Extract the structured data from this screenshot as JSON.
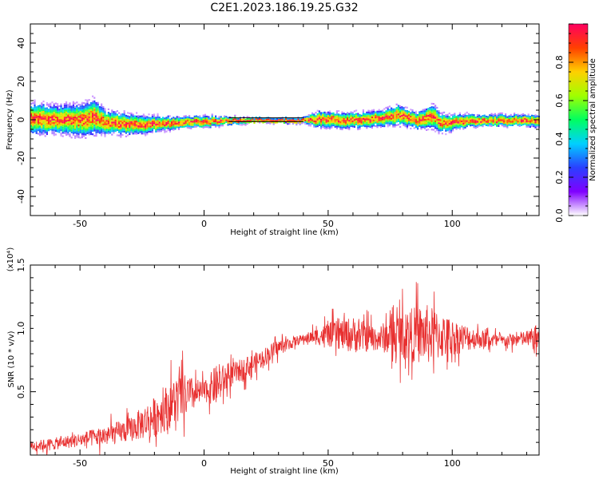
{
  "figure": {
    "title": "C2E1.2023.186.19.25.G32"
  },
  "chart_data": [
    {
      "type": "heatmap",
      "title": "C2E1.2023.186.19.25.G32",
      "xlabel": "Height of straight line (km)",
      "ylabel": "Frequency (Hz)",
      "xlim": [
        -70,
        135
      ],
      "ylim": [
        -50,
        50
      ],
      "x_ticks": [
        -50,
        0,
        50,
        100
      ],
      "x_tick_labels": [
        "-50",
        "0",
        "50",
        "100"
      ],
      "y_ticks": [
        -40,
        -20,
        0,
        20,
        40
      ],
      "y_tick_labels": [
        "-40",
        "-20",
        "0",
        "20",
        "40"
      ],
      "grid": false,
      "description_trace": {
        "x": [
          -70,
          -60,
          -50,
          -45,
          -40,
          -30,
          -20,
          -10,
          0,
          10,
          20,
          30,
          40,
          45,
          50,
          60,
          70,
          78,
          85,
          92,
          95,
          100,
          110,
          120,
          135
        ],
        "center_freq": [
          1,
          0.5,
          0,
          2,
          -1,
          -2,
          -2,
          -1,
          -0.5,
          0,
          0,
          0,
          0,
          0.5,
          0.5,
          0,
          1,
          3,
          0,
          2,
          -1,
          -1,
          0,
          0,
          0
        ],
        "spread_hz": [
          8,
          7,
          8,
          9,
          6,
          5,
          4,
          3,
          3,
          2,
          1.5,
          1.5,
          1.5,
          4,
          4,
          4,
          4,
          5,
          4,
          6,
          5,
          4,
          3,
          3,
          3
        ]
      },
      "colorbar": {
        "label": "Normalized spectral amplitude",
        "ticks": [
          0.0,
          0.2,
          0.4,
          0.6,
          0.8
        ],
        "tick_labels": [
          "0.0",
          "0.2",
          "0.4",
          "0.6",
          "0.8"
        ],
        "range": [
          0,
          1
        ],
        "colormap": [
          "#ffffff",
          "#8000ff",
          "#2a40ff",
          "#00d0ff",
          "#00ff60",
          "#a0ff00",
          "#ffd000",
          "#ff4000",
          "#ff0060"
        ]
      }
    },
    {
      "type": "line",
      "xlabel": "Height of straight line (km)",
      "ylabel": "SNR (10 * v/v)",
      "y_scale_label": "(x10⁴)",
      "xlim": [
        -70,
        135
      ],
      "ylim": [
        0,
        1.5
      ],
      "x_ticks": [
        -50,
        0,
        50,
        100
      ],
      "x_tick_labels": [
        "-50",
        "0",
        "50",
        "100"
      ],
      "y_ticks": [
        0.5,
        1.0,
        1.5
      ],
      "y_tick_labels": [
        "0.5",
        "1.0",
        "1.5"
      ],
      "grid": false,
      "series_color": "#e83030",
      "envelope": {
        "x": [
          -70,
          -60,
          -50,
          -40,
          -30,
          -20,
          -10,
          0,
          5,
          10,
          20,
          30,
          40,
          50,
          60,
          70,
          80,
          90,
          100,
          110,
          120,
          130,
          135
        ],
        "mean": [
          0.07,
          0.09,
          0.12,
          0.15,
          0.2,
          0.3,
          0.45,
          0.5,
          0.55,
          0.62,
          0.72,
          0.85,
          0.92,
          0.95,
          0.95,
          0.92,
          0.95,
          0.95,
          0.93,
          0.92,
          0.9,
          0.92,
          0.92
        ],
        "amplitude": [
          0.05,
          0.06,
          0.07,
          0.1,
          0.12,
          0.2,
          0.25,
          0.1,
          0.2,
          0.12,
          0.1,
          0.08,
          0.04,
          0.12,
          0.18,
          0.12,
          0.25,
          0.3,
          0.18,
          0.1,
          0.06,
          0.08,
          0.15
        ]
      }
    }
  ]
}
